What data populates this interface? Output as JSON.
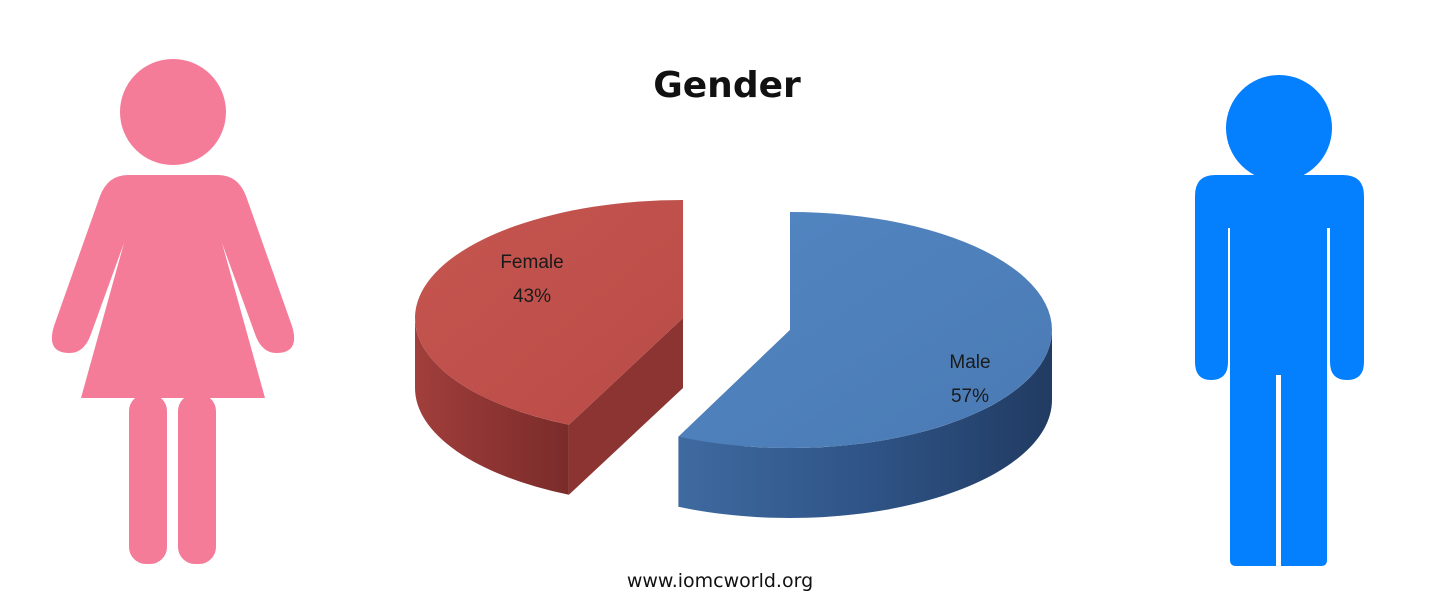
{
  "chart_data": {
    "type": "pie",
    "title": "Gender",
    "categories": [
      "Female",
      "Male"
    ],
    "values": [
      43,
      57
    ],
    "labels": [
      "43%",
      "57%"
    ],
    "colors": {
      "Female": "#c0504d",
      "Male": "#4f81bd"
    },
    "legend": "none",
    "style": "3d-exploded"
  },
  "icons": {
    "left": {
      "name": "female-figure-icon",
      "color": "#f47c99"
    },
    "right": {
      "name": "male-figure-icon",
      "color": "#047ffe"
    }
  },
  "footer": {
    "text": "www.iomcworld.org"
  }
}
